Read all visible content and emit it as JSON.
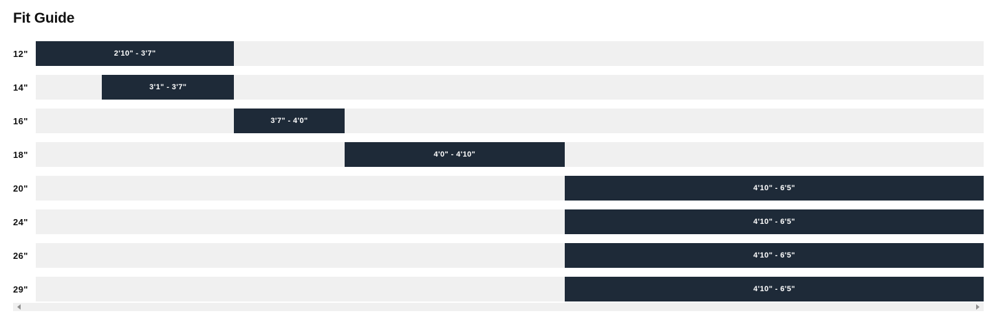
{
  "page": {
    "title": "Fit Guide"
  },
  "chart_data": {
    "type": "bar",
    "orientation": "horizontal",
    "title": "Fit Guide",
    "x_unit": "rider height (inches)",
    "x_domain_inches": [
      34,
      77
    ],
    "categories": [
      "12\"",
      "14\"",
      "16\"",
      "18\"",
      "20\"",
      "24\"",
      "26\"",
      "29\""
    ],
    "rows": [
      {
        "label": "12\"",
        "range_label": "2'10\" - 3'7\"",
        "min_in": 34,
        "max_in": 43
      },
      {
        "label": "14\"",
        "range_label": "3'1\" - 3'7\"",
        "min_in": 37,
        "max_in": 43
      },
      {
        "label": "16\"",
        "range_label": "3'7\" - 4'0\"",
        "min_in": 43,
        "max_in": 48
      },
      {
        "label": "18\"",
        "range_label": "4'0\" - 4'10\"",
        "min_in": 48,
        "max_in": 58
      },
      {
        "label": "20\"",
        "range_label": "4'10\" - 6'5\"",
        "min_in": 58,
        "max_in": 77
      },
      {
        "label": "24\"",
        "range_label": "4'10\" - 6'5\"",
        "min_in": 58,
        "max_in": 77
      },
      {
        "label": "26\"",
        "range_label": "4'10\" - 6'5\"",
        "min_in": 58,
        "max_in": 77
      },
      {
        "label": "29\"",
        "range_label": "4'10\" - 6'5\"",
        "min_in": 58,
        "max_in": 77
      }
    ],
    "colors": {
      "bar": "#1e2a38",
      "track": "#f0f0f0",
      "bar_text": "#ffffff",
      "label_text": "#111111"
    },
    "grid": false,
    "legend": false
  },
  "scrollbar": {
    "orientation": "horizontal",
    "left_arrow_icon": "left-triangle",
    "right_arrow_icon": "right-triangle"
  }
}
